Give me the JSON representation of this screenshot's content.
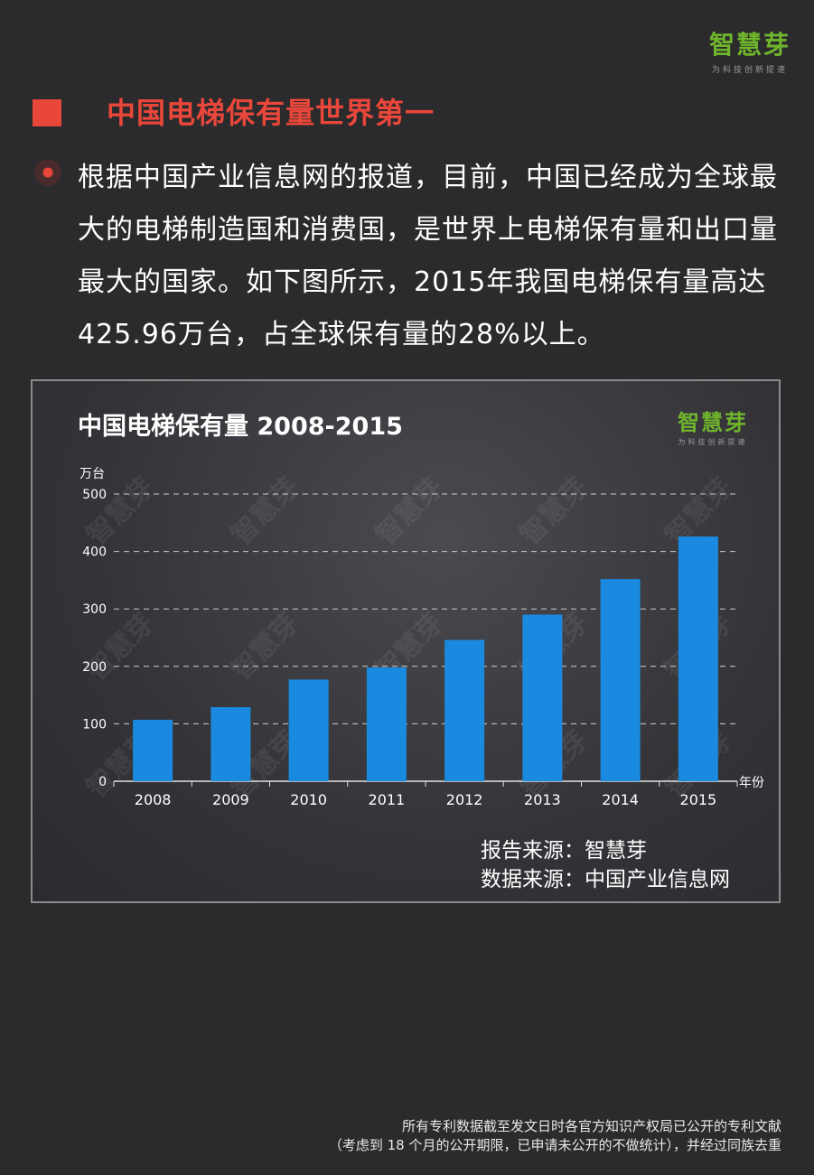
{
  "logo": {
    "name": "智慧芽",
    "slogan": "为科技创新提速"
  },
  "section": {
    "title": "中国电梯保有量世界第一"
  },
  "paragraph": "根据中国产业信息网的报道，目前，中国已经成为全球最大的电梯制造国和消费国，是世界上电梯保有量和出口量最大的国家。如下图所示，2015年我国电梯保有量高达425.96万台，占全球保有量的28%以上。",
  "chart_panel": {
    "report_source": "报告来源：智慧芽",
    "data_source": "数据来源：中国产业信息网",
    "watermark": "智慧芽"
  },
  "chart_data": {
    "type": "bar",
    "title": "中国电梯保有量 2008-2015",
    "ylabel": "万台",
    "xlabel": "年份",
    "categories": [
      "2008",
      "2009",
      "2010",
      "2011",
      "2012",
      "2013",
      "2014",
      "2015"
    ],
    "values": [
      107,
      129,
      177,
      198,
      246,
      290,
      352,
      426
    ],
    "ylim": [
      0,
      500
    ],
    "yticks": [
      "0",
      "100",
      "200",
      "300",
      "400",
      "500"
    ],
    "grid": true,
    "bar_color": "#1a8ae0"
  },
  "footer": {
    "line1": "所有专利数据截至发文日时各官方知识产权局已公开的专利文献",
    "line2": "（考虑到 18 个月的公开期限，已申请未公开的不做统计），并经过同族去重"
  }
}
